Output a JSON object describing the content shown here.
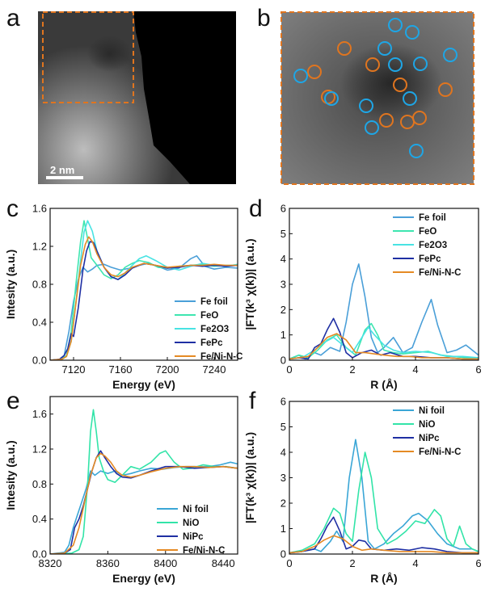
{
  "images": {
    "a": {
      "letter": "a",
      "scale_bar": "2 nm"
    },
    "b": {
      "letter": "b",
      "orange_circle_count": 9,
      "blue_circle_count": 13
    }
  },
  "colors": {
    "fe_foil": "#4a9fd8",
    "feo": "#3ee6b0",
    "fe2o3": "#48e3e3",
    "fepc": "#1f2fa3",
    "feni": "#e58a24",
    "ni_foil": "#3aa6d6",
    "nio": "#32e4a8",
    "nipc": "#1f2fa3",
    "orange_circle": "#e0751f",
    "blue_circle": "#1ea6e6"
  },
  "chart_data": [
    {
      "panel": "c",
      "type": "line",
      "xlabel": "Energy (eV)",
      "ylabel": "Intesity (a.u.)",
      "xlim": [
        7100,
        7260
      ],
      "ylim": [
        0,
        1.6
      ],
      "xticks": [
        "7120",
        "7160",
        "7200",
        "7240"
      ],
      "xtick_values": [
        7120,
        7160,
        7200,
        7240
      ],
      "yticks": [
        "0.0",
        "0.4",
        "0.8",
        "1.2",
        "1.6"
      ],
      "ytick_values": [
        0,
        0.4,
        0.8,
        1.2,
        1.6
      ],
      "series": [
        {
          "name": "Fe foil",
          "label": "Fe foil",
          "color": "#4a9fd8",
          "x": [
            7100,
            7110,
            7112,
            7116,
            7120,
            7124,
            7128,
            7132,
            7136,
            7140,
            7146,
            7152,
            7160,
            7168,
            7176,
            7184,
            7192,
            7200,
            7210,
            7220,
            7225,
            7232,
            7240,
            7250,
            7260
          ],
          "y": [
            0,
            0.01,
            0.05,
            0.3,
            0.62,
            0.85,
            0.98,
            0.93,
            0.96,
            1.0,
            1.01,
            0.98,
            0.95,
            0.97,
            1.0,
            1.02,
            0.99,
            0.95,
            0.97,
            1.07,
            1.1,
            0.99,
            0.96,
            0.98,
            0.97
          ]
        },
        {
          "name": "FeO",
          "label": "FeO",
          "color": "#3ee6b0",
          "x": [
            7100,
            7110,
            7114,
            7118,
            7122,
            7126,
            7129,
            7132,
            7135,
            7140,
            7146,
            7152,
            7158,
            7164,
            7170,
            7176,
            7184,
            7192,
            7200,
            7210,
            7220,
            7230,
            7240,
            7250,
            7260
          ],
          "y": [
            0,
            0.01,
            0.05,
            0.3,
            0.8,
            1.25,
            1.47,
            1.28,
            1.08,
            1.0,
            0.9,
            0.86,
            0.9,
            0.98,
            1.02,
            1.05,
            1.03,
            0.98,
            0.97,
            0.99,
            1.0,
            1.01,
            0.99,
            1.0,
            1.0
          ]
        },
        {
          "name": "Fe2O3",
          "label": "Fe2O3",
          "color": "#48e3e3",
          "x": [
            7100,
            7110,
            7114,
            7118,
            7122,
            7126,
            7129,
            7132,
            7136,
            7140,
            7146,
            7152,
            7158,
            7164,
            7170,
            7176,
            7182,
            7190,
            7200,
            7210,
            7220,
            7230,
            7240,
            7250,
            7260
          ],
          "y": [
            0,
            0.01,
            0.04,
            0.2,
            0.6,
            1.05,
            1.35,
            1.47,
            1.36,
            1.15,
            0.98,
            0.88,
            0.85,
            0.92,
            1.0,
            1.07,
            1.1,
            1.05,
            0.98,
            0.95,
            0.99,
            1.02,
            1.0,
            0.99,
            1.01
          ]
        },
        {
          "name": "FePc",
          "label": "FePc",
          "color": "#1f2fa3",
          "x": [
            7100,
            7108,
            7112,
            7115,
            7118,
            7120,
            7124,
            7128,
            7131,
            7134,
            7137,
            7140,
            7146,
            7152,
            7158,
            7164,
            7170,
            7180,
            7190,
            7200,
            7210,
            7220,
            7230,
            7240,
            7250,
            7260
          ],
          "y": [
            0,
            0.01,
            0.05,
            0.12,
            0.28,
            0.25,
            0.55,
            0.95,
            1.15,
            1.25,
            1.24,
            1.15,
            0.98,
            0.88,
            0.85,
            0.9,
            0.97,
            1.02,
            1.0,
            0.97,
            0.98,
            1.0,
            0.99,
            1.0,
            0.99,
            1.0
          ]
        },
        {
          "name": "Fe/Ni-N-C",
          "label": "Fe/Ni-N-C",
          "color": "#e58a24",
          "x": [
            7100,
            7110,
            7114,
            7118,
            7122,
            7126,
            7130,
            7133,
            7136,
            7140,
            7146,
            7152,
            7158,
            7164,
            7170,
            7180,
            7190,
            7200,
            7210,
            7220,
            7230,
            7240,
            7250,
            7260
          ],
          "y": [
            0,
            0.01,
            0.04,
            0.2,
            0.6,
            1.0,
            1.22,
            1.3,
            1.25,
            1.12,
            0.98,
            0.9,
            0.88,
            0.92,
            0.98,
            1.02,
            1.0,
            0.98,
            0.99,
            1.0,
            1.0,
            1.01,
            1.0,
            1.0
          ]
        }
      ]
    },
    {
      "panel": "d",
      "type": "line",
      "xlabel": "R (Å)",
      "ylabel": "|FT(k³ χ(k))| (a.u.)",
      "xlim": [
        0,
        6
      ],
      "ylim": [
        0,
        6
      ],
      "xticks": [
        "0",
        "2",
        "4",
        "6"
      ],
      "xtick_values": [
        0,
        2,
        4,
        6
      ],
      "yticks": [
        "0",
        "1",
        "2",
        "3",
        "4",
        "5",
        "6"
      ],
      "ytick_values": [
        0,
        1,
        2,
        3,
        4,
        5,
        6
      ],
      "series": [
        {
          "name": "Fe foil",
          "label": "Fe foil",
          "color": "#4a9fd8",
          "x": [
            0,
            0.3,
            0.5,
            0.8,
            1.0,
            1.3,
            1.6,
            1.8,
            2.0,
            2.2,
            2.4,
            2.6,
            2.8,
            3.0,
            3.3,
            3.6,
            3.9,
            4.2,
            4.5,
            4.7,
            5.0,
            5.3,
            5.6,
            6.0
          ],
          "y": [
            0.05,
            0.2,
            0.05,
            0.3,
            0.2,
            0.5,
            0.35,
            1.5,
            3.0,
            3.8,
            2.5,
            0.9,
            0.3,
            0.5,
            0.9,
            0.3,
            0.5,
            1.5,
            2.4,
            1.4,
            0.3,
            0.4,
            0.6,
            0.2
          ]
        },
        {
          "name": "FeO",
          "label": "FeO",
          "color": "#3ee6b0",
          "x": [
            0,
            0.3,
            0.6,
            0.9,
            1.2,
            1.5,
            1.8,
            2.1,
            2.4,
            2.6,
            2.8,
            3.0,
            3.3,
            3.6,
            4.0,
            4.4,
            4.8,
            5.2,
            5.6,
            6.0
          ],
          "y": [
            0.05,
            0.2,
            0.1,
            0.4,
            0.8,
            1.0,
            0.5,
            0.2,
            1.2,
            1.45,
            1.0,
            0.4,
            0.3,
            0.25,
            0.3,
            0.35,
            0.2,
            0.15,
            0.1,
            0.1
          ]
        },
        {
          "name": "Fe2O3",
          "label": "Fe2O3",
          "color": "#48e3e3",
          "x": [
            0,
            0.4,
            0.8,
            1.1,
            1.4,
            1.7,
            2.0,
            2.3,
            2.5,
            2.7,
            3.0,
            3.3,
            3.6,
            4.0,
            4.5,
            5.0,
            5.5,
            6.0
          ],
          "y": [
            0.05,
            0.1,
            0.4,
            0.7,
            0.9,
            0.6,
            0.3,
            0.9,
            1.3,
            1.0,
            0.6,
            0.4,
            0.3,
            0.35,
            0.3,
            0.15,
            0.15,
            0.1
          ]
        },
        {
          "name": "FePc",
          "label": "FePc",
          "color": "#1f2fa3",
          "x": [
            0,
            0.3,
            0.6,
            0.8,
            1.0,
            1.2,
            1.4,
            1.6,
            1.8,
            2.0,
            2.3,
            2.6,
            2.9,
            3.2,
            3.6,
            4.0,
            4.5,
            5.0,
            5.5,
            6.0
          ],
          "y": [
            0.05,
            0.1,
            0.05,
            0.5,
            0.65,
            1.2,
            1.65,
            1.1,
            0.3,
            0.1,
            0.3,
            0.4,
            0.2,
            0.3,
            0.15,
            0.15,
            0.1,
            0.1,
            0.05,
            0.05
          ]
        },
        {
          "name": "Fe/Ni-N-C",
          "label": "Fe/Ni-N-C",
          "color": "#e58a24",
          "x": [
            0,
            0.3,
            0.6,
            0.9,
            1.2,
            1.5,
            1.8,
            2.1,
            2.4,
            2.7,
            3.0,
            3.4,
            3.8,
            4.2,
            4.6,
            5.0,
            5.5,
            6.0
          ],
          "y": [
            0.05,
            0.1,
            0.15,
            0.5,
            0.9,
            1.05,
            0.8,
            0.3,
            0.3,
            0.25,
            0.2,
            0.15,
            0.15,
            0.1,
            0.1,
            0.1,
            0.05,
            0.05
          ]
        }
      ]
    },
    {
      "panel": "e",
      "type": "line",
      "xlabel": "Energy (eV)",
      "ylabel": "Intesity (a.u.)",
      "xlim": [
        8320,
        8450
      ],
      "ylim": [
        0,
        1.8
      ],
      "xticks": [
        "8320",
        "8360",
        "8400",
        "8440"
      ],
      "xtick_values": [
        8320,
        8360,
        8400,
        8440
      ],
      "yticks": [
        "0.0",
        "0.4",
        "0.8",
        "1.2",
        "1.6"
      ],
      "ytick_values": [
        0,
        0.4,
        0.8,
        1.2,
        1.6
      ],
      "series": [
        {
          "name": "Ni foil",
          "label": "Ni foil",
          "color": "#3aa6d6",
          "x": [
            8320,
            8330,
            8333,
            8336,
            8339,
            8342,
            8345,
            8348,
            8351,
            8355,
            8360,
            8365,
            8370,
            8376,
            8382,
            8390,
            8398,
            8406,
            8414,
            8422,
            8430,
            8438,
            8445,
            8450
          ],
          "y": [
            0,
            0.02,
            0.1,
            0.3,
            0.45,
            0.6,
            0.75,
            0.95,
            0.9,
            0.95,
            0.92,
            0.95,
            0.9,
            0.92,
            0.95,
            0.98,
            0.97,
            0.99,
            1.0,
            1.0,
            1.0,
            1.02,
            1.05,
            1.03
          ]
        },
        {
          "name": "NiO",
          "label": "NiO",
          "color": "#32e4a8",
          "x": [
            8320,
            8335,
            8340,
            8343,
            8346,
            8348,
            8350,
            8352,
            8354,
            8357,
            8360,
            8365,
            8370,
            8376,
            8382,
            8390,
            8396,
            8400,
            8406,
            8412,
            8418,
            8426,
            8434,
            8442,
            8450
          ],
          "y": [
            0,
            0.01,
            0.05,
            0.2,
            0.8,
            1.4,
            1.65,
            1.4,
            1.1,
            0.95,
            0.85,
            0.82,
            0.9,
            1.0,
            0.97,
            1.05,
            1.15,
            1.18,
            1.05,
            0.97,
            0.98,
            1.02,
            1.0,
            1.0,
            0.98
          ]
        },
        {
          "name": "NiPc",
          "label": "NiPc",
          "color": "#1f2fa3",
          "x": [
            8320,
            8330,
            8334,
            8337,
            8340,
            8343,
            8346,
            8349,
            8352,
            8355,
            8358,
            8362,
            8366,
            8370,
            8376,
            8382,
            8390,
            8400,
            8410,
            8420,
            8430,
            8440,
            8450
          ],
          "y": [
            0,
            0.01,
            0.05,
            0.3,
            0.4,
            0.55,
            0.75,
            0.95,
            1.1,
            1.18,
            1.1,
            1.0,
            0.92,
            0.88,
            0.87,
            0.9,
            0.95,
            1.0,
            1.0,
            0.98,
            0.99,
            1.0,
            0.98
          ]
        },
        {
          "name": "Fe/Ni-N-C",
          "label": "Fe/Ni-N-C",
          "color": "#e58a24",
          "x": [
            8320,
            8330,
            8336,
            8340,
            8344,
            8348,
            8352,
            8355,
            8358,
            8362,
            8366,
            8370,
            8376,
            8382,
            8390,
            8400,
            8410,
            8420,
            8430,
            8440,
            8450
          ],
          "y": [
            0,
            0.01,
            0.1,
            0.3,
            0.6,
            0.9,
            1.1,
            1.15,
            1.12,
            1.05,
            0.95,
            0.9,
            0.88,
            0.9,
            0.94,
            0.98,
            1.0,
            1.0,
            0.99,
            1.0,
            0.98
          ]
        }
      ]
    },
    {
      "panel": "f",
      "type": "line",
      "xlabel": "R (Å)",
      "ylabel": "|FT(k³ χ(k))| (a.u.)",
      "xlim": [
        0,
        6
      ],
      "ylim": [
        0,
        6
      ],
      "xticks": [
        "0",
        "2",
        "4",
        "6"
      ],
      "xtick_values": [
        0,
        2,
        4,
        6
      ],
      "yticks": [
        "0",
        "1",
        "2",
        "3",
        "4",
        "5",
        "6"
      ],
      "ytick_values": [
        0,
        1,
        2,
        3,
        4,
        5,
        6
      ],
      "series": [
        {
          "name": "Ni foil",
          "label": "Ni foil",
          "color": "#3aa6d6",
          "x": [
            0,
            0.4,
            0.8,
            1.0,
            1.3,
            1.5,
            1.7,
            1.9,
            2.1,
            2.3,
            2.5,
            2.7,
            3.0,
            3.3,
            3.6,
            3.9,
            4.1,
            4.4,
            4.7,
            5.0,
            5.4,
            5.8,
            6.0
          ],
          "y": [
            0.05,
            0.1,
            0.2,
            0.1,
            0.5,
            0.9,
            0.5,
            3.0,
            4.5,
            3.0,
            0.5,
            0.2,
            0.4,
            0.8,
            1.1,
            1.5,
            1.6,
            1.3,
            0.8,
            0.4,
            0.2,
            0.2,
            0.1
          ]
        },
        {
          "name": "NiO",
          "label": "NiO",
          "color": "#32e4a8",
          "x": [
            0,
            0.4,
            0.8,
            1.1,
            1.4,
            1.6,
            1.8,
            2.0,
            2.2,
            2.4,
            2.6,
            2.8,
            3.1,
            3.4,
            3.7,
            4.0,
            4.3,
            4.6,
            4.8,
            5.0,
            5.2,
            5.4,
            5.6,
            5.8,
            6.0
          ],
          "y": [
            0.05,
            0.15,
            0.4,
            1.0,
            1.8,
            1.6,
            0.8,
            0.5,
            2.5,
            4.0,
            3.0,
            1.0,
            0.4,
            0.6,
            0.9,
            1.3,
            1.2,
            1.75,
            1.5,
            0.6,
            0.3,
            1.1,
            0.4,
            0.2,
            0.1
          ]
        },
        {
          "name": "NiPc",
          "label": "NiPc",
          "color": "#1f2fa3",
          "x": [
            0,
            0.4,
            0.8,
            1.0,
            1.2,
            1.4,
            1.6,
            1.8,
            2.0,
            2.2,
            2.4,
            2.6,
            3.0,
            3.4,
            3.8,
            4.2,
            4.6,
            5.0,
            5.5,
            6.0
          ],
          "y": [
            0.05,
            0.1,
            0.2,
            0.6,
            1.1,
            1.45,
            0.9,
            0.2,
            0.3,
            0.55,
            0.5,
            0.2,
            0.15,
            0.2,
            0.15,
            0.25,
            0.2,
            0.1,
            0.05,
            0.05
          ]
        },
        {
          "name": "Fe/Ni-N-C",
          "label": "Fe/Ni-N-C",
          "color": "#e58a24",
          "x": [
            0,
            0.4,
            0.8,
            1.1,
            1.4,
            1.7,
            2.0,
            2.3,
            2.6,
            3.0,
            3.5,
            4.0,
            4.5,
            5.0,
            5.5,
            6.0
          ],
          "y": [
            0.05,
            0.1,
            0.3,
            0.55,
            0.72,
            0.6,
            0.3,
            0.15,
            0.2,
            0.15,
            0.1,
            0.1,
            0.1,
            0.05,
            0.05,
            0.05
          ]
        }
      ]
    }
  ]
}
